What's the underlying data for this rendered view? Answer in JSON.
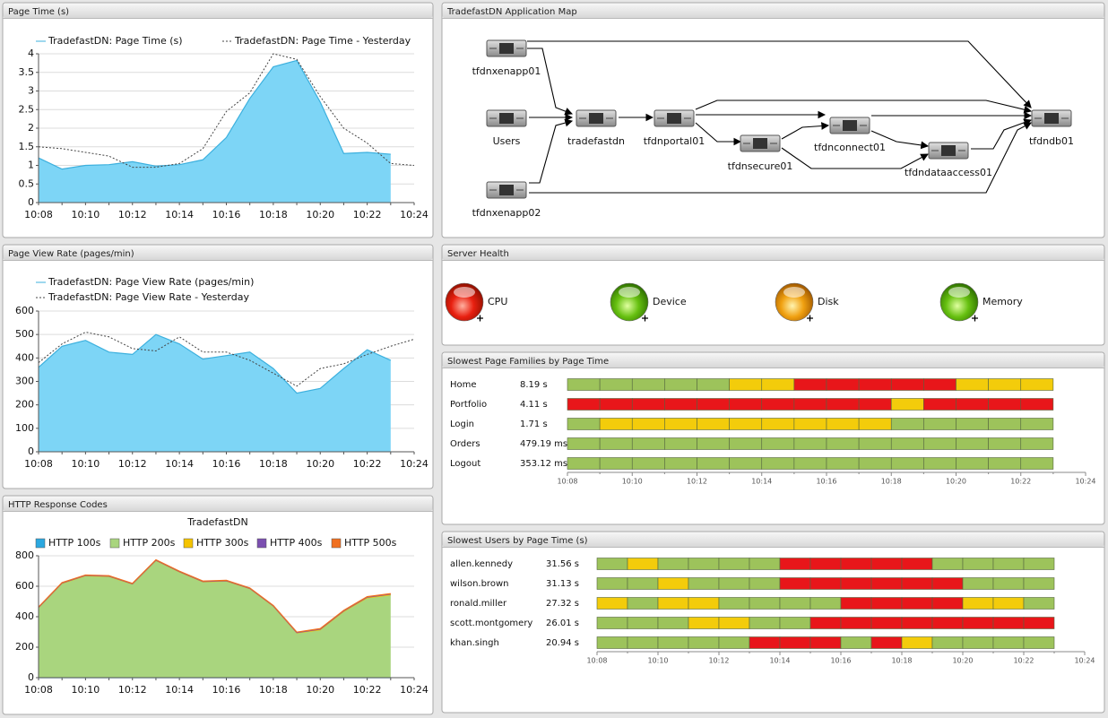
{
  "page_time": {
    "title": "Page Time (s)",
    "type": "area",
    "categories": [
      "10:08",
      null,
      "10:10",
      null,
      "10:12",
      null,
      "10:14",
      null,
      "10:16",
      null,
      "10:18",
      null,
      "10:20",
      null,
      "10:22",
      null,
      "10:24"
    ],
    "ylim": [
      0,
      4
    ],
    "yticks": [
      0,
      0.5,
      1,
      1.5,
      2,
      2.5,
      3,
      3.5,
      4
    ],
    "grid": true,
    "series": [
      {
        "name": "TradefastDN: Page Time (s)",
        "color": "#7dd5f6",
        "values": [
          1.2,
          0.9,
          1.0,
          1.02,
          1.1,
          0.98,
          1.02,
          1.15,
          1.75,
          2.8,
          3.65,
          3.82,
          2.7,
          1.32,
          1.35,
          1.3,
          null
        ]
      },
      {
        "name": "TradefastDN: Page Time - Yesterday",
        "color": "#444444",
        "dash": true,
        "values": [
          1.5,
          1.45,
          1.35,
          1.25,
          0.95,
          0.95,
          1.05,
          1.45,
          2.45,
          2.95,
          4.0,
          3.85,
          2.85,
          2.0,
          1.6,
          1.05,
          1.0
        ]
      }
    ]
  },
  "page_view_rate": {
    "title": "Page View Rate (pages/min)",
    "type": "area",
    "categories": [
      "10:08",
      null,
      "10:10",
      null,
      "10:12",
      null,
      "10:14",
      null,
      "10:16",
      null,
      "10:18",
      null,
      "10:20",
      null,
      "10:22",
      null,
      "10:24"
    ],
    "ylim": [
      0,
      600
    ],
    "yticks": [
      0,
      100,
      200,
      300,
      400,
      500,
      600
    ],
    "grid": true,
    "series": [
      {
        "name": "TradefastDN: Page View Rate (pages/min)",
        "color": "#7dd5f6",
        "values": [
          360,
          450,
          475,
          425,
          415,
          500,
          460,
          395,
          410,
          425,
          355,
          250,
          270,
          355,
          435,
          390,
          null
        ]
      },
      {
        "name": "TradefastDN: Page View Rate - Yesterday",
        "color": "#444444",
        "dash": true,
        "values": [
          380,
          460,
          510,
          490,
          440,
          430,
          490,
          425,
          425,
          390,
          335,
          280,
          355,
          375,
          415,
          450,
          480
        ]
      }
    ]
  },
  "http_response_codes": {
    "title": "HTTP Response Codes",
    "chart_title": "TradefastDN",
    "type": "stacked_area",
    "categories": [
      "10:08",
      null,
      "10:10",
      null,
      "10:12",
      null,
      "10:14",
      null,
      "10:16",
      null,
      "10:18",
      null,
      "10:20",
      null,
      "10:22",
      null,
      "10:24"
    ],
    "ylim": [
      0,
      800
    ],
    "yticks": [
      0,
      200,
      400,
      600,
      800
    ],
    "grid": true,
    "series": [
      {
        "name": "HTTP 100s",
        "color": "#2ba8e0",
        "values": [
          0,
          0,
          0,
          0,
          0,
          0,
          0,
          0,
          0,
          0,
          0,
          0,
          0,
          0,
          0,
          0,
          null
        ]
      },
      {
        "name": "HTTP 200s",
        "color": "#a9d57e",
        "values": [
          455,
          615,
          665,
          660,
          610,
          765,
          690,
          625,
          630,
          580,
          465,
          290,
          310,
          430,
          520,
          540,
          null
        ]
      },
      {
        "name": "HTTP 300s",
        "color": "#f5c400",
        "values": [
          6,
          6,
          6,
          6,
          6,
          6,
          6,
          6,
          6,
          6,
          6,
          6,
          8,
          8,
          8,
          8,
          null
        ]
      },
      {
        "name": "HTTP 400s",
        "color": "#7b4fb0",
        "values": [
          0,
          0,
          0,
          0,
          0,
          0,
          0,
          0,
          0,
          0,
          0,
          0,
          0,
          0,
          0,
          0,
          null
        ]
      },
      {
        "name": "HTTP 500s",
        "color": "#f07020",
        "values": [
          3,
          3,
          3,
          3,
          3,
          3,
          3,
          3,
          3,
          3,
          3,
          3,
          4,
          4,
          4,
          4,
          null
        ]
      }
    ]
  },
  "application_map": {
    "title": "TradefastDN Application Map",
    "nodes": [
      {
        "label": "tfdnxenapp01"
      },
      {
        "label": "Users"
      },
      {
        "label": "tradefastdn"
      },
      {
        "label": "tfdnportal01"
      },
      {
        "label": "tfdnsecure01"
      },
      {
        "label": "tfdnconnect01"
      },
      {
        "label": "tfdndataaccess01"
      },
      {
        "label": "tfdnxenapp02"
      },
      {
        "label": "tfdndb01"
      }
    ]
  },
  "server_health": {
    "title": "Server Health",
    "items": [
      {
        "label": "CPU",
        "color": "red"
      },
      {
        "label": "Device",
        "color": "green"
      },
      {
        "label": "Disk",
        "color": "orange"
      },
      {
        "label": "Memory",
        "color": "green"
      }
    ]
  },
  "slowest_page_families": {
    "title": "Slowest Page Families by Page Time",
    "categories": [
      "10:08",
      null,
      "10:10",
      null,
      "10:12",
      null,
      "10:14",
      null,
      "10:16",
      null,
      "10:18",
      null,
      "10:20",
      null,
      "10:22",
      null,
      "10:24"
    ],
    "palette": {
      "g": "#9dc35b",
      "y": "#f3cc0b",
      "r": "#e8161a"
    },
    "rows": [
      {
        "name": "Home",
        "time": "8.19 s",
        "segments": [
          "g",
          "g",
          "g",
          "g",
          "g",
          "y",
          "y",
          "r",
          "r",
          "r",
          "r",
          "r",
          "y",
          "y",
          "y"
        ]
      },
      {
        "name": "Portfolio",
        "time": "4.11 s",
        "segments": [
          "r",
          "r",
          "r",
          "r",
          "r",
          "r",
          "r",
          "r",
          "r",
          "r",
          "y",
          "r",
          "r",
          "r",
          "r"
        ]
      },
      {
        "name": "Login",
        "time": "1.71 s",
        "segments": [
          "g",
          "y",
          "y",
          "y",
          "y",
          "y",
          "y",
          "y",
          "y",
          "y",
          "g",
          "g",
          "g",
          "g",
          "g"
        ]
      },
      {
        "name": "Orders",
        "time": "479.19 ms",
        "segments": [
          "g",
          "g",
          "g",
          "g",
          "g",
          "g",
          "g",
          "g",
          "g",
          "g",
          "g",
          "g",
          "g",
          "g",
          "g"
        ]
      },
      {
        "name": "Logout",
        "time": "353.12 ms",
        "segments": [
          "g",
          "g",
          "g",
          "g",
          "g",
          "g",
          "g",
          "g",
          "g",
          "g",
          "g",
          "g",
          "g",
          "g",
          "g"
        ]
      }
    ]
  },
  "slowest_users": {
    "title": "Slowest Users by Page Time (s)",
    "categories": [
      "10:08",
      null,
      "10:10",
      null,
      "10:12",
      null,
      "10:14",
      null,
      "10:16",
      null,
      "10:18",
      null,
      "10:20",
      null,
      "10:22",
      null,
      "10:24"
    ],
    "palette": {
      "g": "#9dc35b",
      "y": "#f3cc0b",
      "r": "#e8161a"
    },
    "rows": [
      {
        "name": "allen.kennedy",
        "time": "31.56 s",
        "segments": [
          "g",
          "y",
          "g",
          "g",
          "g",
          "g",
          "r",
          "r",
          "r",
          "r",
          "r",
          "g",
          "g",
          "g",
          "g"
        ]
      },
      {
        "name": "wilson.brown",
        "time": "31.13 s",
        "segments": [
          "g",
          "g",
          "y",
          "g",
          "g",
          "g",
          "r",
          "r",
          "r",
          "r",
          "r",
          "r",
          "g",
          "g",
          "g"
        ]
      },
      {
        "name": "ronald.miller",
        "time": "27.32 s",
        "segments": [
          "y",
          "g",
          "y",
          "y",
          "g",
          "g",
          "g",
          "g",
          "r",
          "r",
          "r",
          "r",
          "y",
          "y",
          "g"
        ]
      },
      {
        "name": "scott.montgomery",
        "time": "26.01 s",
        "segments": [
          "g",
          "g",
          "g",
          "y",
          "y",
          "g",
          "g",
          "r",
          "r",
          "r",
          "r",
          "r",
          "r",
          "r",
          "r"
        ]
      },
      {
        "name": "khan.singh",
        "time": "20.94 s",
        "segments": [
          "g",
          "g",
          "g",
          "g",
          "g",
          "r",
          "r",
          "r",
          "g",
          "r",
          "y",
          "g",
          "g",
          "g",
          "g"
        ]
      }
    ]
  }
}
